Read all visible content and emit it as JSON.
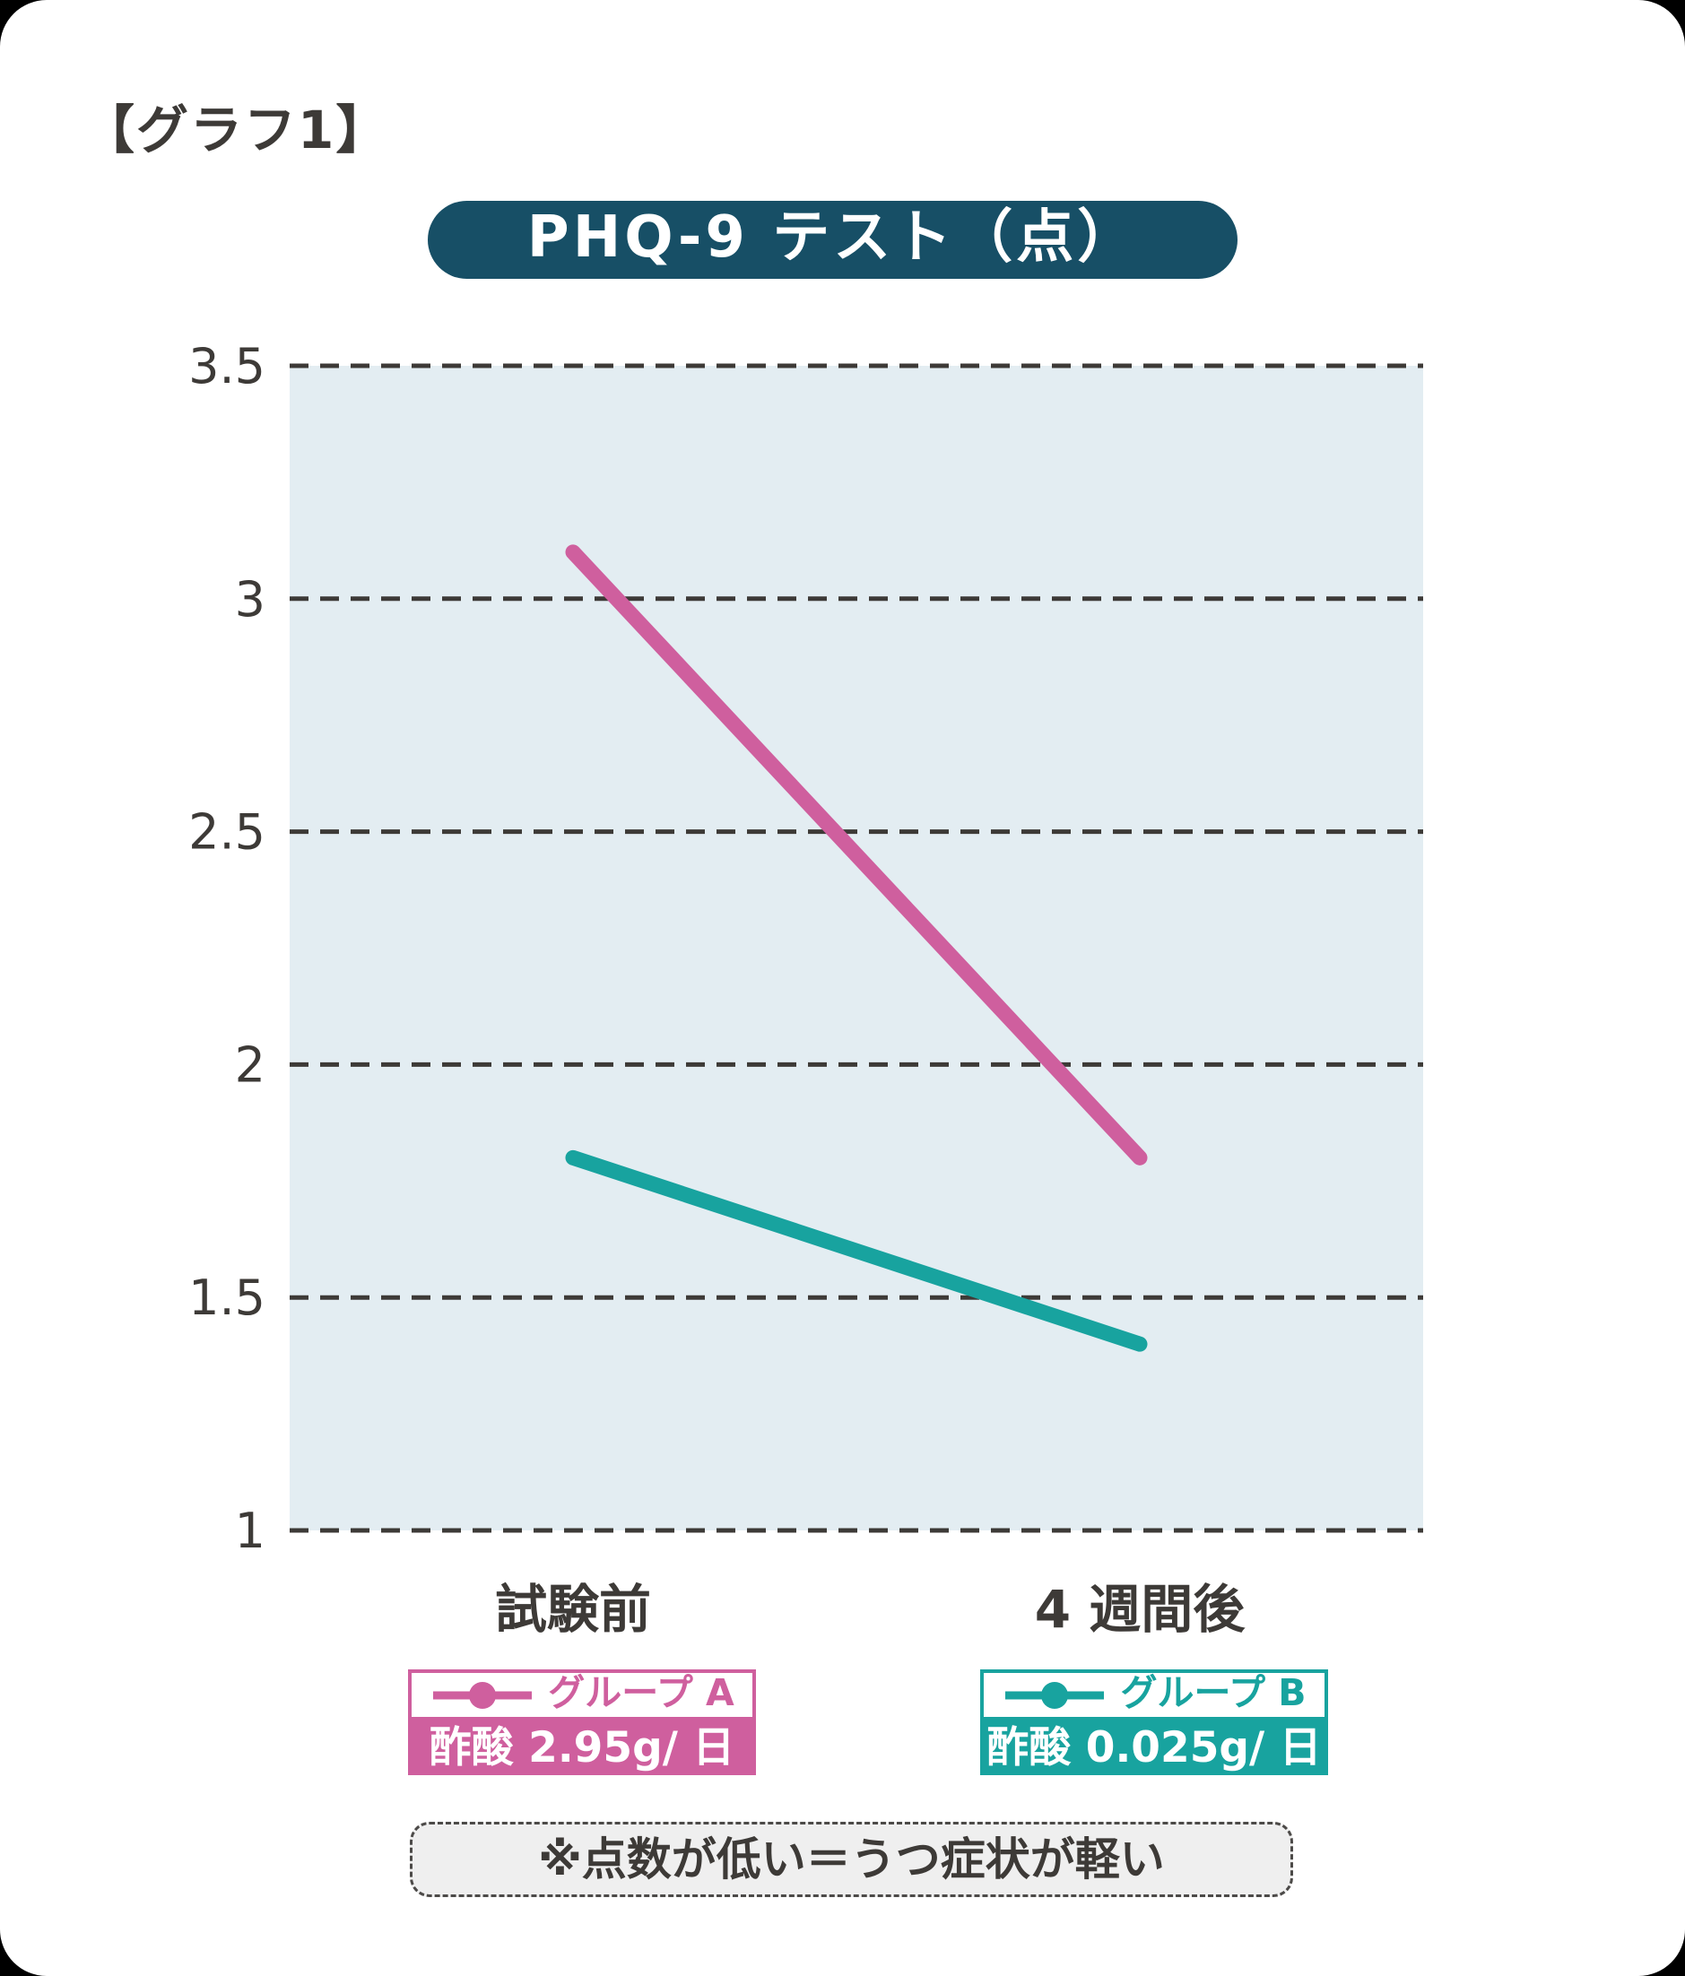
{
  "page": {
    "header_label": "【グラフ1】",
    "note": "※点数が低い＝うつ症状が軽い"
  },
  "chart_data": {
    "type": "line",
    "title": "PHQ-9 テスト（点）",
    "categories": [
      "試験前",
      "4 週間後"
    ],
    "series": [
      {
        "name": "グループ A",
        "label": "酢酸 2.95g/ 日",
        "values": [
          3.1,
          1.8
        ],
        "color": "#cf5f9e"
      },
      {
        "name": "グループ B",
        "label": "酢酸 0.025g/ 日",
        "values": [
          1.8,
          1.4
        ],
        "color": "#18a39f"
      }
    ],
    "ylim": [
      1,
      3.5
    ],
    "yticks": [
      3.5,
      3,
      2.5,
      2,
      1.5,
      1
    ],
    "xlabel": "",
    "ylabel": "",
    "grid": "horizontal-dashed",
    "legend_position": "bottom",
    "note": "※点数が低い＝うつ症状が軽い"
  },
  "colors": {
    "title_pill_bg": "#174f66",
    "title_text": "#ffffff",
    "plot_bg": "#e3edf2",
    "gridline": "#3d3a37",
    "axis_text": "#3d3a37",
    "note_bg": "#efefef",
    "note_border": "#4c4a48",
    "card_bg": "#ffffff"
  }
}
